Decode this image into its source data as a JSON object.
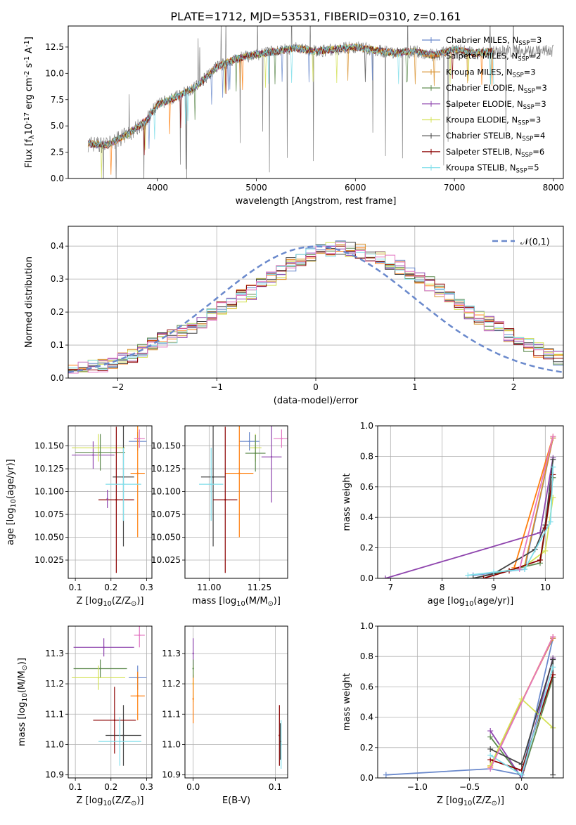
{
  "colors": {
    "series": [
      "#6a89cc",
      "#ff7f0e",
      "#d8902d",
      "#5d8a4e",
      "#8e44ad",
      "#d4e157",
      "#444444",
      "#8b0000",
      "#80deea"
    ],
    "gray": "#808080",
    "normal_line": "#6a89cc",
    "grid": "#b0b0b0",
    "s_pink": "#e377c2",
    "s_red": "#c00000",
    "s_dark": "#555555"
  },
  "series_names": [
    "Chabrier MILES, N$_{SSP}$=3",
    "Salpeter MILES, N$_{SSP}$=2",
    "Kroupa MILES, N$_{SSP}$=3",
    "Chabrier ELODIE, N$_{SSP}$=3",
    "Salpeter ELODIE, N$_{SSP}$=3",
    "Kroupa ELODIE, N$_{SSP}$=3",
    "Chabrier STELIB, N$_{SSP}$=4",
    "Salpeter STELIB, N$_{SSP}$=6",
    "Kroupa STELIB, N$_{SSP}$=5"
  ],
  "chart_data": [
    {
      "type": "line",
      "title": "PLATE=1712, MJD=53531, FIBERID=0310, z=0.161",
      "xlabel": "wavelength [Angstrom, rest frame]",
      "ylabel": "Flux [f$_\\lambda$10$^{-17}$ erg cm$^{-2}$ s$^{-1}$ A$^{-1}$]",
      "xlim": [
        3100,
        8100
      ],
      "ylim": [
        0,
        14.5
      ],
      "xticks": [
        "4000",
        "5000",
        "6000",
        "7000",
        "8000"
      ],
      "yticks": [
        "0.0",
        "2.5",
        "5.0",
        "7.5",
        "10.0",
        "12.5"
      ],
      "legend_position": "top-right",
      "continuum_x": [
        3300,
        3500,
        3700,
        3900,
        4000,
        4200,
        4400,
        4600,
        4800,
        5000,
        5200,
        5400,
        5600,
        5800,
        6000,
        6200,
        6400,
        6600,
        6800,
        7000,
        7200,
        7400
      ],
      "continuum_y": [
        3.3,
        3.2,
        4.2,
        5.6,
        7.0,
        7.8,
        8.8,
        10.6,
        11.4,
        11.8,
        12.1,
        12.4,
        12.1,
        12.3,
        12.5,
        12.2,
        11.9,
        12.1,
        11.7,
        12.3,
        11.9,
        12.1
      ],
      "data_end_x": 8000
    },
    {
      "type": "area",
      "xlabel": "(data-model)/error",
      "ylabel": "Normed distribution",
      "xlim": [
        -2.5,
        2.5
      ],
      "ylim": [
        0,
        0.46
      ],
      "xticks": [
        "−2",
        "−1",
        "0",
        "1",
        "2"
      ],
      "yticks": [
        "0.0",
        "0.1",
        "0.2",
        "0.3",
        "0.4"
      ],
      "legend": "$\\mathcal{N}(0,1)$",
      "legend_position": "top-right",
      "bin_width": 0.1,
      "histogram_mean": [
        0.028,
        0.03,
        0.035,
        0.04,
        0.048,
        0.055,
        0.065,
        0.08,
        0.1,
        0.115,
        0.128,
        0.14,
        0.155,
        0.17,
        0.19,
        0.21,
        0.23,
        0.25,
        0.26,
        0.28,
        0.3,
        0.32,
        0.345,
        0.36,
        0.375,
        0.385,
        0.39,
        0.395,
        0.39,
        0.385,
        0.375,
        0.365,
        0.35,
        0.335,
        0.32,
        0.3,
        0.285,
        0.265,
        0.245,
        0.225,
        0.2,
        0.185,
        0.165,
        0.15,
        0.13,
        0.115,
        0.1,
        0.085,
        0.07,
        0.06
      ]
    },
    {
      "type": "scatter",
      "xlabel": "Z [log$_{10}$(Z/Z$_\\odot$)]",
      "ylabel": "age  [log$_{10}$(age/yr)]",
      "xlim": [
        0.08,
        0.315
      ],
      "ylim": [
        10.005,
        10.172
      ],
      "xticks": [
        "0.1",
        "0.2",
        "0.3"
      ],
      "yticks": [
        "10.025",
        "10.050",
        "10.075",
        "10.100",
        "10.125",
        "10.150"
      ],
      "points": [
        {
          "x": 0.275,
          "y": 10.155,
          "xerr": 0.025,
          "yerr": 0.01,
          "c": 0
        },
        {
          "x": 0.275,
          "y": 10.12,
          "xerr": 0.02,
          "yerr": 0.07,
          "c": 1
        },
        {
          "x": 0.28,
          "y": 10.158,
          "xerr": 0.015,
          "yerr": 0.01,
          "c": "s_pink"
        },
        {
          "x": 0.15,
          "y": 10.14,
          "xerr": 0.06,
          "yerr": 0.015,
          "c": 4
        },
        {
          "x": 0.165,
          "y": 10.148,
          "xerr": 0.075,
          "yerr": 0.015,
          "c": 5
        },
        {
          "x": 0.17,
          "y": 10.143,
          "xerr": 0.07,
          "yerr": 0.02,
          "c": 3
        },
        {
          "x": 0.235,
          "y": 10.116,
          "xerr": 0.03,
          "yerr": 0.076,
          "c": 6
        },
        {
          "x": 0.215,
          "y": 10.091,
          "xerr": 0.05,
          "yerr": 0.08,
          "c": 7
        },
        {
          "x": 0.235,
          "y": 10.108,
          "xerr": 0.05,
          "yerr": 0.04,
          "c": 8
        },
        {
          "x": 0.19,
          "y": 10.092,
          "xerr": 0.0,
          "yerr": 0.01,
          "c": 4
        }
      ]
    },
    {
      "type": "scatter",
      "xlabel": "mass [log$_{10}$(M/M$_\\odot$)]",
      "xlim": [
        10.88,
        11.39
      ],
      "ylim": [
        10.005,
        10.172
      ],
      "xticks": [
        "11.00",
        "11.25"
      ],
      "yticks": [
        "10.025",
        "10.050",
        "10.075",
        "10.100",
        "10.125",
        "10.150"
      ],
      "points": [
        {
          "x": 11.2,
          "y": 10.155,
          "xerr": 0.05,
          "yerr": 0.01,
          "c": 0
        },
        {
          "x": 11.15,
          "y": 10.12,
          "xerr": 0.07,
          "yerr": 0.07,
          "c": 1
        },
        {
          "x": 11.36,
          "y": 10.158,
          "xerr": 0.04,
          "yerr": 0.01,
          "c": "s_pink"
        },
        {
          "x": 11.31,
          "y": 10.138,
          "xerr": 0.05,
          "yerr": 0.05,
          "c": 4
        },
        {
          "x": 11.23,
          "y": 10.148,
          "xerr": 0.03,
          "yerr": 0.015,
          "c": 5
        },
        {
          "x": 11.23,
          "y": 10.142,
          "xerr": 0.05,
          "yerr": 0.02,
          "c": 3
        },
        {
          "x": 11.02,
          "y": 10.116,
          "xerr": 0.06,
          "yerr": 0.076,
          "c": 6
        },
        {
          "x": 11.08,
          "y": 10.091,
          "xerr": 0.06,
          "yerr": 0.08,
          "c": 7
        },
        {
          "x": 11.01,
          "y": 10.108,
          "xerr": 0.06,
          "yerr": 0.04,
          "c": 8
        }
      ]
    },
    {
      "type": "line",
      "xlabel": "age  [log$_{10}$(age/yr)]",
      "ylabel": "mass weight",
      "xlim": [
        6.75,
        10.35
      ],
      "ylim": [
        0,
        1.0
      ],
      "xticks": [
        "7",
        "8",
        "9",
        "10"
      ],
      "yticks": [
        "0.0",
        "0.2",
        "0.4",
        "0.6",
        "0.8",
        "1.0"
      ],
      "series": [
        {
          "c": 0,
          "x": [
            8.6,
            9.6,
            10.15
          ],
          "y": [
            0.02,
            0.06,
            0.92
          ]
        },
        {
          "c": 1,
          "x": [
            9.4,
            10.15
          ],
          "y": [
            0.07,
            0.93
          ]
        },
        {
          "c": 2,
          "x": [
            9.6,
            10.15
          ],
          "y": [
            0.08,
            0.92
          ]
        },
        {
          "c": 3,
          "x": [
            8.6,
            9.9,
            10.15
          ],
          "y": [
            0.0,
            0.1,
            0.66
          ]
        },
        {
          "c": 4,
          "x": [
            6.9,
            9.9,
            10.15
          ],
          "y": [
            0.0,
            0.3,
            0.79
          ]
        },
        {
          "c": 5,
          "x": [
            9.6,
            10.0,
            10.15
          ],
          "y": [
            0.08,
            0.18,
            0.53
          ]
        },
        {
          "c": 6,
          "x": [
            8.6,
            9.0,
            9.8,
            10.0,
            10.15
          ],
          "y": [
            0.0,
            0.03,
            0.19,
            0.35,
            0.78
          ]
        },
        {
          "c": 7,
          "x": [
            8.8,
            9.3,
            9.9,
            10.0,
            10.15
          ],
          "y": [
            0.0,
            0.05,
            0.12,
            0.33,
            0.68
          ]
        },
        {
          "c": 8,
          "x": [
            8.5,
            9.0,
            9.6,
            10.1,
            10.15
          ],
          "y": [
            0.02,
            0.04,
            0.06,
            0.37,
            0.73
          ]
        },
        {
          "c": "s_pink",
          "x": [
            9.5,
            10.15
          ],
          "y": [
            0.06,
            0.93
          ]
        }
      ]
    },
    {
      "type": "scatter",
      "xlabel": "Z [log$_{10}$(Z/Z$_\\odot$)]",
      "ylabel": "mass [log$_{10}$(M/M$_\\odot$)]",
      "xlim": [
        0.08,
        0.315
      ],
      "ylim": [
        10.89,
        11.39
      ],
      "xticks": [
        "0.1",
        "0.2",
        "0.3"
      ],
      "yticks": [
        "10.9",
        "11.0",
        "11.1",
        "11.2",
        "11.3"
      ],
      "points": [
        {
          "x": 0.275,
          "y": 11.22,
          "xerr": 0.025,
          "yerr": 0.04,
          "c": 0
        },
        {
          "x": 0.275,
          "y": 11.16,
          "xerr": 0.02,
          "yerr": 0.08,
          "c": 1
        },
        {
          "x": 0.28,
          "y": 11.36,
          "xerr": 0.015,
          "yerr": 0.04,
          "c": "s_pink"
        },
        {
          "x": 0.18,
          "y": 11.32,
          "xerr": 0.085,
          "yerr": 0.03,
          "c": 4
        },
        {
          "x": 0.17,
          "y": 11.25,
          "xerr": 0.075,
          "yerr": 0.03,
          "c": 3
        },
        {
          "x": 0.165,
          "y": 11.22,
          "xerr": 0.075,
          "yerr": 0.04,
          "c": 5
        },
        {
          "x": 0.235,
          "y": 11.03,
          "xerr": 0.05,
          "yerr": 0.1,
          "c": 6
        },
        {
          "x": 0.21,
          "y": 11.08,
          "xerr": 0.06,
          "yerr": 0.11,
          "c": 7
        },
        {
          "x": 0.225,
          "y": 11.01,
          "xerr": 0.06,
          "yerr": 0.08,
          "c": 8
        }
      ]
    },
    {
      "type": "scatter",
      "xlabel": "E(B-V)",
      "xlim": [
        -0.01,
        0.115
      ],
      "ylim": [
        10.89,
        11.39
      ],
      "xticks": [
        "0.0",
        "0.1"
      ],
      "yticks": [
        "10.9",
        "11.0",
        "11.1",
        "11.2",
        "11.3"
      ],
      "points": [
        {
          "x": 0.0,
          "y": 11.3,
          "yerr": 0.05,
          "c": 4
        },
        {
          "x": 0.0,
          "y": 11.2,
          "yerr": 0.06,
          "c": 5
        },
        {
          "x": 0.0,
          "y": 11.15,
          "yerr": 0.08,
          "c": 1
        },
        {
          "x": 0.0,
          "y": 11.25,
          "yerr": 0.03,
          "c": 3
        },
        {
          "x": 0.105,
          "y": 11.03,
          "yerr": 0.1,
          "c": 7
        },
        {
          "x": 0.107,
          "y": 11.0,
          "yerr": 0.08,
          "c": 8
        },
        {
          "x": 0.106,
          "y": 11.01,
          "yerr": 0.06,
          "c": 6
        }
      ]
    },
    {
      "type": "line",
      "xlabel": "Z [log$_{10}$(Z/Z$_\\odot$)]",
      "ylabel": "mass weight",
      "xlim": [
        -1.38,
        0.4
      ],
      "ylim": [
        0,
        1.0
      ],
      "xticks": [
        "−1.0",
        "−0.5",
        "0.0"
      ],
      "yticks": [
        "0.0",
        "0.2",
        "0.4",
        "0.6",
        "0.8",
        "1.0"
      ],
      "series": [
        {
          "c": 0,
          "x": [
            -1.3,
            -0.3,
            0.0,
            0.3
          ],
          "y": [
            0.02,
            0.06,
            0.02,
            0.92
          ]
        },
        {
          "c": 1,
          "x": [
            -0.3,
            0.3
          ],
          "y": [
            0.07,
            0.93
          ]
        },
        {
          "c": 2,
          "x": [
            -0.3,
            0.3
          ],
          "y": [
            0.08,
            0.92
          ]
        },
        {
          "c": 3,
          "x": [
            -0.3,
            0.0,
            0.3
          ],
          "y": [
            0.27,
            0.0,
            0.66
          ]
        },
        {
          "c": 4,
          "x": [
            -0.3,
            0.0,
            0.3
          ],
          "y": [
            0.31,
            0.0,
            0.79
          ]
        },
        {
          "c": 5,
          "x": [
            -0.3,
            0.0,
            0.3
          ],
          "y": [
            0.08,
            0.52,
            0.33
          ]
        },
        {
          "c": 6,
          "x": [
            -0.3,
            0.0,
            0.3,
            0.3
          ],
          "y": [
            0.19,
            0.09,
            0.78,
            0.02
          ]
        },
        {
          "c": 7,
          "x": [
            -0.3,
            0.0,
            0.3
          ],
          "y": [
            0.12,
            0.05,
            0.68
          ]
        },
        {
          "c": 8,
          "x": [
            -0.3,
            0.0,
            0.3
          ],
          "y": [
            0.15,
            0.02,
            0.73
          ]
        },
        {
          "c": "s_pink",
          "x": [
            -0.3,
            0.3
          ],
          "y": [
            0.06,
            0.93
          ]
        }
      ]
    }
  ]
}
